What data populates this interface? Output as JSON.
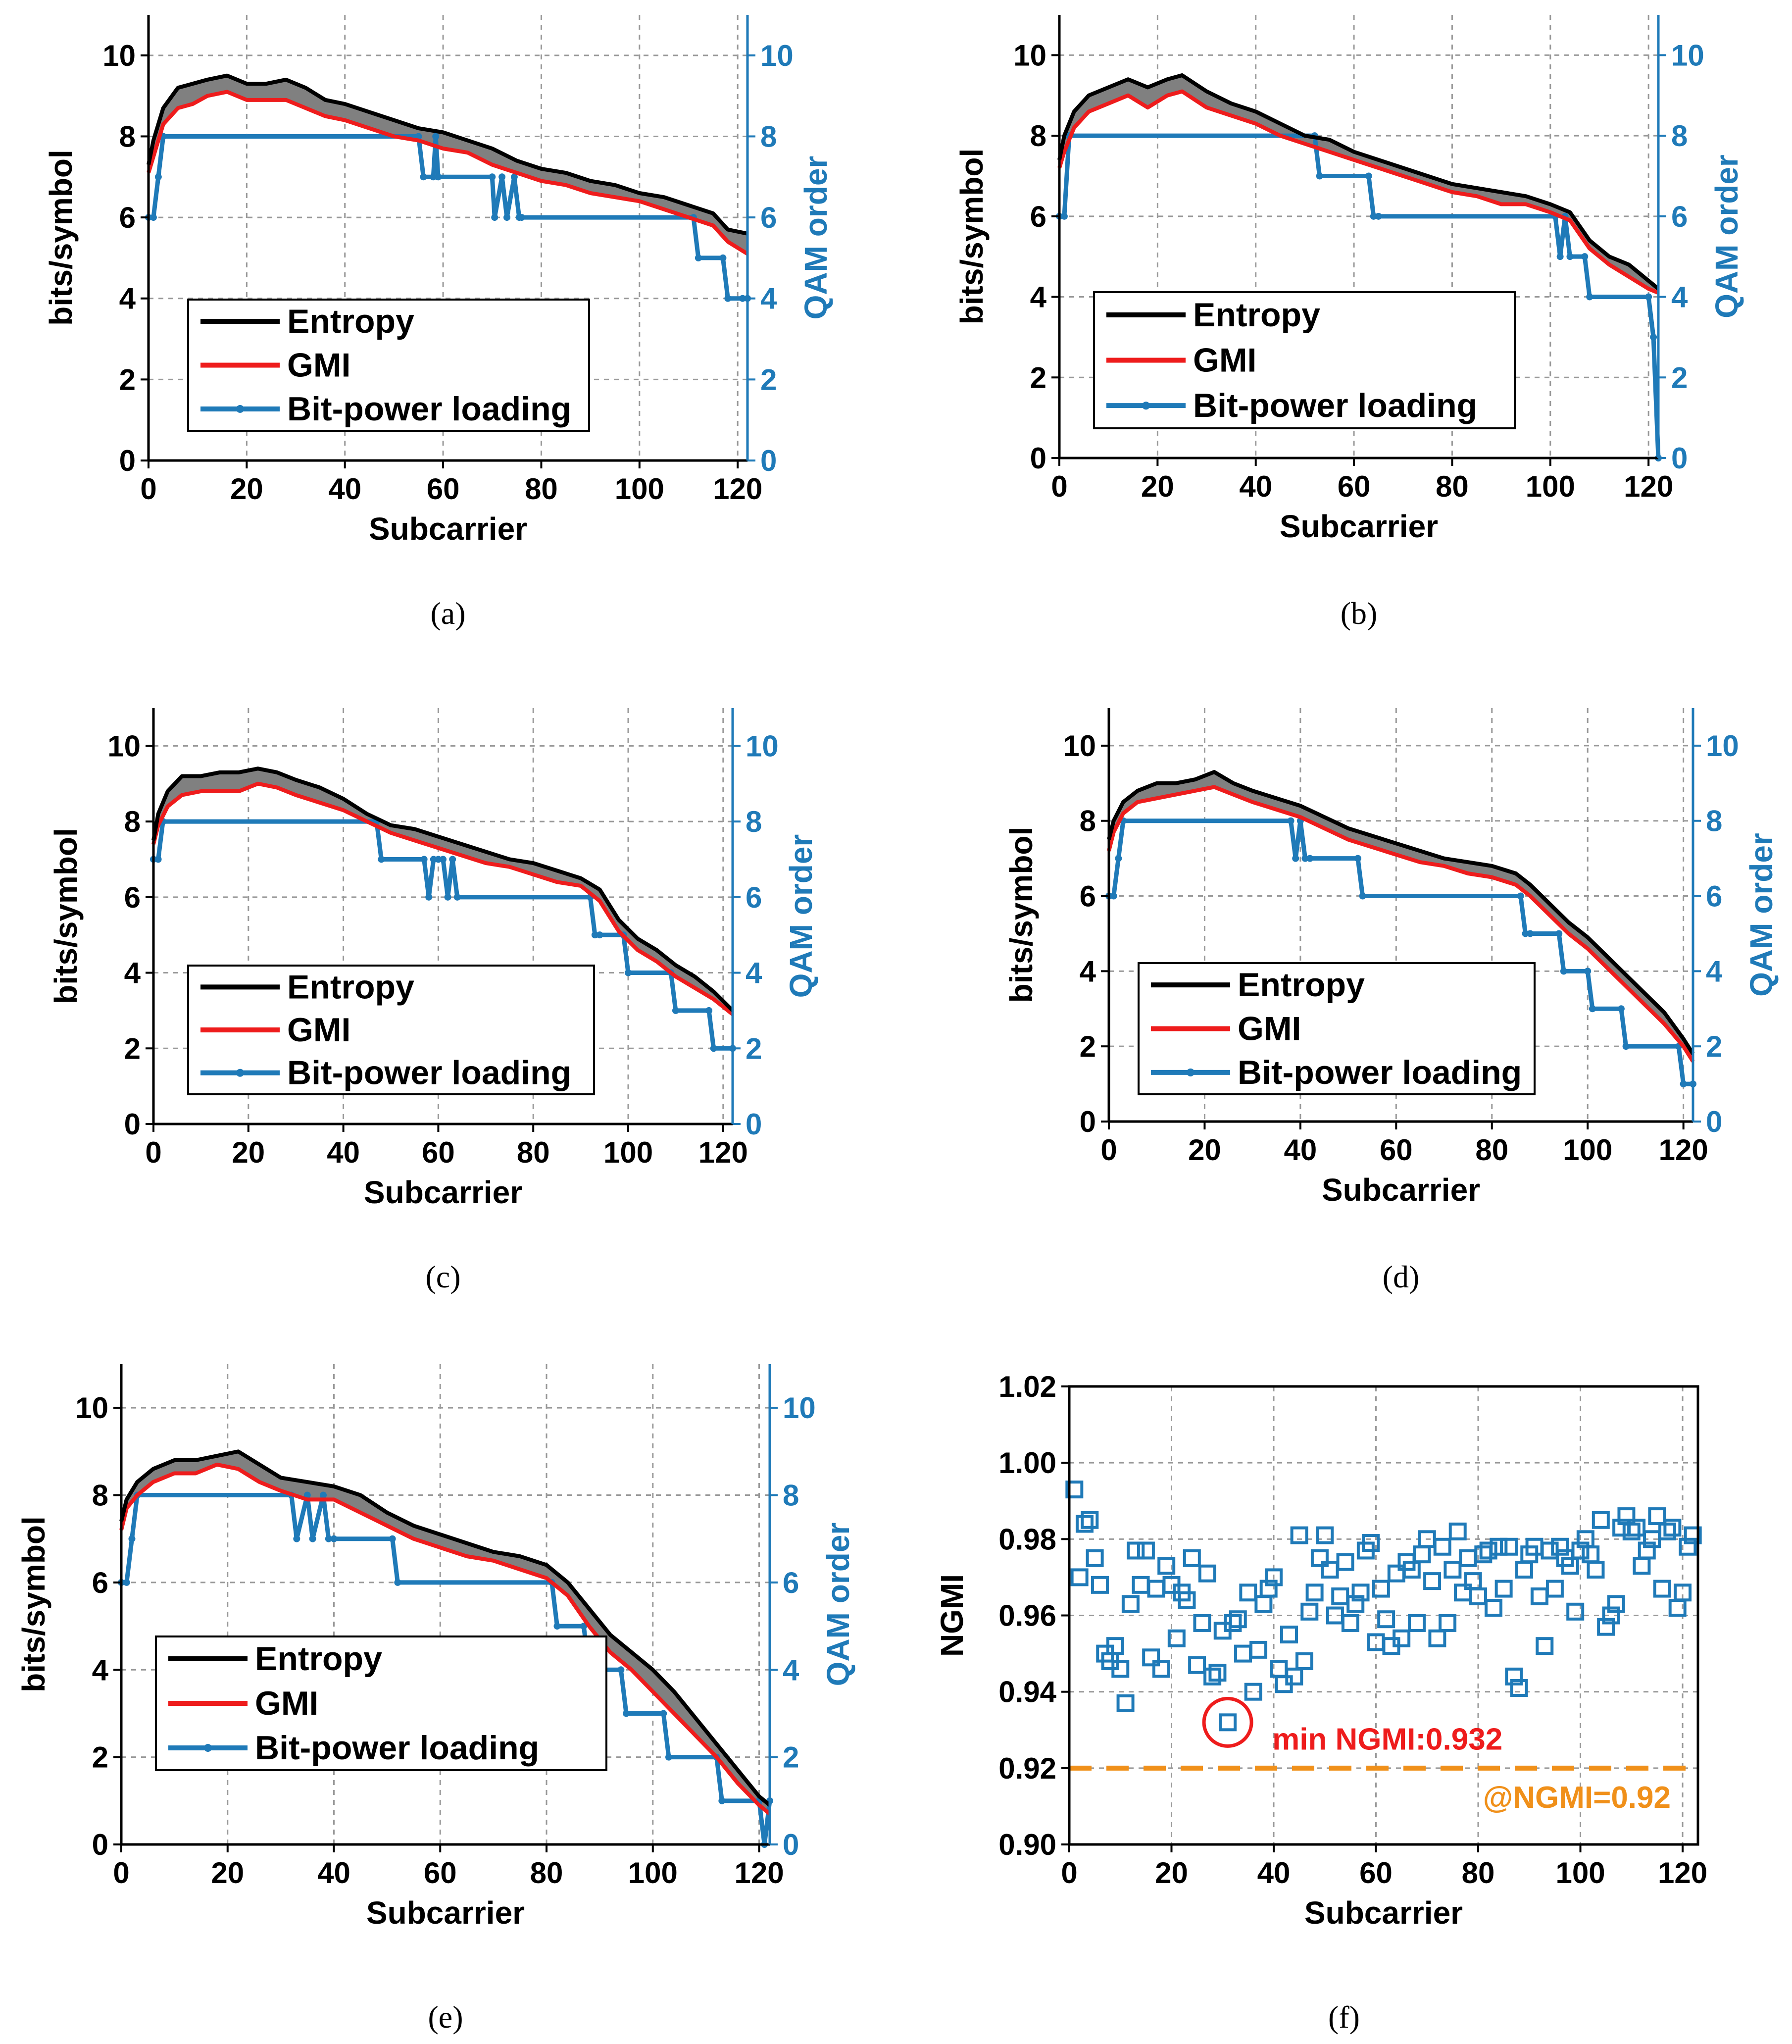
{
  "figure": {
    "panel_count": 6
  },
  "colors": {
    "entropy": "#000000",
    "gmi": "#ee1c1c",
    "gap_fill": "#808080",
    "qam": "#1f7ab8",
    "threshold": "#f0901a",
    "annotation": "#ee1c1c",
    "grid": "#999999"
  },
  "chart_data": [
    {
      "id": "a",
      "type": "line",
      "caption": "(a)",
      "xlabel": "Subcarrier",
      "ylabel": "bits/symbol",
      "y2label": "QAM order",
      "xlim": [
        0,
        122
      ],
      "ylim": [
        0,
        11
      ],
      "y2lim": [
        0,
        11
      ],
      "xticks": [
        "0",
        "20",
        "40",
        "60",
        "80",
        "100",
        "120"
      ],
      "yticks": [
        "0",
        "2",
        "4",
        "6",
        "8",
        "10"
      ],
      "y2ticks": [
        "0",
        "2",
        "4",
        "6",
        "8",
        "10"
      ],
      "legend": {
        "entropy": "Entropy",
        "gmi": "GMI",
        "qam": "Bit-power loading",
        "position": "lower-left"
      },
      "entropy_x": [
        0,
        1,
        3,
        6,
        9,
        12,
        16,
        20,
        24,
        28,
        32,
        36,
        40,
        45,
        50,
        55,
        60,
        65,
        70,
        75,
        80,
        85,
        90,
        95,
        100,
        105,
        110,
        115,
        118,
        122
      ],
      "entropy_y": [
        7.3,
        7.9,
        8.7,
        9.2,
        9.3,
        9.4,
        9.5,
        9.3,
        9.3,
        9.4,
        9.2,
        8.9,
        8.8,
        8.6,
        8.4,
        8.2,
        8.1,
        7.9,
        7.7,
        7.4,
        7.2,
        7.1,
        6.9,
        6.8,
        6.6,
        6.5,
        6.3,
        6.1,
        5.7,
        5.6
      ],
      "gmi_x": [
        0,
        1,
        3,
        6,
        9,
        12,
        16,
        20,
        24,
        28,
        32,
        36,
        40,
        45,
        50,
        55,
        60,
        65,
        70,
        75,
        80,
        85,
        90,
        95,
        100,
        105,
        110,
        115,
        118,
        122
      ],
      "gmi_y": [
        7.1,
        7.5,
        8.3,
        8.7,
        8.8,
        9.0,
        9.1,
        8.9,
        8.9,
        8.9,
        8.7,
        8.5,
        8.4,
        8.2,
        8.0,
        7.9,
        7.7,
        7.6,
        7.3,
        7.1,
        6.9,
        6.8,
        6.6,
        6.5,
        6.4,
        6.2,
        6.0,
        5.8,
        5.4,
        5.1
      ],
      "qam_x": [
        0,
        1,
        2,
        3,
        55,
        56,
        58,
        58.5,
        59,
        70,
        70.5,
        72,
        73,
        74.5,
        75.5,
        76,
        111,
        112,
        117,
        118,
        121,
        122
      ],
      "qam_y": [
        6,
        6,
        7,
        8,
        8,
        7,
        7,
        8,
        7,
        7,
        6,
        7,
        6,
        7,
        6,
        6,
        6,
        5,
        5,
        4,
        4,
        4
      ]
    },
    {
      "id": "b",
      "type": "line",
      "caption": "(b)",
      "xlabel": "Subcarrier",
      "ylabel": "bits/symbol",
      "y2label": "QAM order",
      "xlim": [
        0,
        122
      ],
      "ylim": [
        0,
        11
      ],
      "y2lim": [
        0,
        11
      ],
      "xticks": [
        "0",
        "20",
        "40",
        "60",
        "80",
        "100",
        "120"
      ],
      "yticks": [
        "0",
        "2",
        "4",
        "6",
        "8",
        "10"
      ],
      "y2ticks": [
        "0",
        "2",
        "4",
        "6",
        "8",
        "10"
      ],
      "legend": {
        "entropy": "Entropy",
        "gmi": "GMI",
        "qam": "Bit-power loading",
        "position": "lower-left"
      },
      "entropy_x": [
        0,
        1,
        3,
        6,
        10,
        14,
        18,
        22,
        25,
        30,
        35,
        40,
        45,
        50,
        55,
        60,
        65,
        70,
        75,
        80,
        85,
        90,
        95,
        100,
        104,
        108,
        112,
        116,
        120,
        122
      ],
      "entropy_y": [
        7.4,
        8.0,
        8.6,
        9.0,
        9.2,
        9.4,
        9.2,
        9.4,
        9.5,
        9.1,
        8.8,
        8.6,
        8.3,
        8.0,
        7.9,
        7.6,
        7.4,
        7.2,
        7.0,
        6.8,
        6.7,
        6.6,
        6.5,
        6.3,
        6.1,
        5.4,
        5.0,
        4.8,
        4.4,
        4.2
      ],
      "gmi_x": [
        0,
        1,
        3,
        6,
        10,
        14,
        18,
        22,
        25,
        30,
        35,
        40,
        45,
        50,
        55,
        60,
        65,
        70,
        75,
        80,
        85,
        90,
        95,
        100,
        104,
        108,
        112,
        116,
        120,
        122
      ],
      "gmi_y": [
        7.2,
        7.6,
        8.2,
        8.6,
        8.8,
        9.0,
        8.7,
        9.0,
        9.1,
        8.7,
        8.5,
        8.3,
        8.0,
        7.8,
        7.6,
        7.4,
        7.2,
        7.0,
        6.8,
        6.6,
        6.5,
        6.3,
        6.3,
        6.1,
        5.9,
        5.2,
        4.8,
        4.5,
        4.2,
        4.1
      ],
      "qam_x": [
        0,
        1,
        2,
        52,
        53,
        63,
        64,
        65,
        101,
        102,
        103,
        104,
        107,
        108,
        120,
        121,
        122
      ],
      "qam_y": [
        6,
        6,
        8,
        8,
        7,
        7,
        6,
        6,
        6,
        5,
        6,
        5,
        5,
        4,
        4,
        3,
        0
      ]
    },
    {
      "id": "c",
      "type": "line",
      "caption": "(c)",
      "xlabel": "Subcarrier",
      "ylabel": "bits/symbol",
      "y2label": "QAM order",
      "xlim": [
        0,
        122
      ],
      "ylim": [
        0,
        11
      ],
      "y2lim": [
        0,
        11
      ],
      "xticks": [
        "0",
        "20",
        "40",
        "60",
        "80",
        "100",
        "120"
      ],
      "yticks": [
        "0",
        "2",
        "4",
        "6",
        "8",
        "10"
      ],
      "y2ticks": [
        "0",
        "2",
        "4",
        "6",
        "8",
        "10"
      ],
      "legend": {
        "entropy": "Entropy",
        "gmi": "GMI",
        "qam": "Bit-power loading",
        "position": "lower-left"
      },
      "entropy_x": [
        0,
        1,
        3,
        6,
        10,
        14,
        18,
        22,
        26,
        30,
        35,
        40,
        45,
        50,
        55,
        60,
        65,
        70,
        75,
        80,
        85,
        90,
        94,
        98,
        102,
        106,
        110,
        114,
        118,
        122
      ],
      "entropy_y": [
        7.5,
        8.2,
        8.8,
        9.2,
        9.2,
        9.3,
        9.3,
        9.4,
        9.3,
        9.1,
        8.9,
        8.6,
        8.2,
        7.9,
        7.8,
        7.6,
        7.4,
        7.2,
        7.0,
        6.9,
        6.7,
        6.5,
        6.2,
        5.4,
        4.9,
        4.6,
        4.2,
        3.9,
        3.5,
        3.0
      ],
      "gmi_x": [
        0,
        1,
        3,
        6,
        10,
        14,
        18,
        22,
        26,
        30,
        35,
        40,
        45,
        50,
        55,
        60,
        65,
        70,
        75,
        80,
        85,
        90,
        94,
        98,
        102,
        106,
        110,
        114,
        118,
        122
      ],
      "gmi_y": [
        7.4,
        7.9,
        8.4,
        8.7,
        8.8,
        8.8,
        8.8,
        9.0,
        8.9,
        8.7,
        8.5,
        8.3,
        8.0,
        7.7,
        7.5,
        7.3,
        7.1,
        6.9,
        6.8,
        6.6,
        6.4,
        6.3,
        5.9,
        5.1,
        4.6,
        4.3,
        3.9,
        3.6,
        3.3,
        2.9
      ],
      "qam_x": [
        0,
        1,
        2,
        47,
        48,
        57,
        58,
        59,
        60,
        61,
        62,
        63,
        64,
        92,
        93,
        94,
        99,
        100,
        109,
        110,
        117,
        118,
        122
      ],
      "qam_y": [
        7,
        7,
        8,
        8,
        7,
        7,
        6,
        7,
        7,
        7,
        6,
        7,
        6,
        6,
        5,
        5,
        5,
        4,
        4,
        3,
        3,
        2,
        2
      ]
    },
    {
      "id": "d",
      "type": "line",
      "caption": "(d)",
      "xlabel": "Subcarrier",
      "ylabel": "bits/symbol",
      "y2label": "QAM order",
      "xlim": [
        0,
        122
      ],
      "ylim": [
        0,
        11
      ],
      "y2lim": [
        0,
        11
      ],
      "xticks": [
        "0",
        "20",
        "40",
        "60",
        "80",
        "100",
        "120"
      ],
      "yticks": [
        "0",
        "2",
        "4",
        "6",
        "8",
        "10"
      ],
      "y2ticks": [
        "0",
        "2",
        "4",
        "6",
        "8",
        "10"
      ],
      "legend": {
        "entropy": "Entropy",
        "gmi": "GMI",
        "qam": "Bit-power loading",
        "position": "lower-left"
      },
      "entropy_x": [
        0,
        1,
        3,
        6,
        10,
        14,
        18,
        22,
        26,
        30,
        35,
        40,
        45,
        50,
        55,
        60,
        65,
        70,
        75,
        80,
        85,
        88,
        92,
        96,
        100,
        104,
        108,
        112,
        116,
        120,
        122
      ],
      "entropy_y": [
        7.5,
        8.0,
        8.5,
        8.8,
        9.0,
        9.0,
        9.1,
        9.3,
        9.0,
        8.8,
        8.6,
        8.4,
        8.1,
        7.8,
        7.6,
        7.4,
        7.2,
        7.0,
        6.9,
        6.8,
        6.6,
        6.3,
        5.8,
        5.3,
        4.9,
        4.4,
        3.9,
        3.4,
        2.9,
        2.2,
        1.8
      ],
      "gmi_x": [
        0,
        1,
        3,
        6,
        10,
        14,
        18,
        22,
        26,
        30,
        35,
        40,
        45,
        50,
        55,
        60,
        65,
        70,
        75,
        80,
        85,
        88,
        92,
        96,
        100,
        104,
        108,
        112,
        116,
        120,
        122
      ],
      "gmi_y": [
        7.2,
        7.7,
        8.2,
        8.5,
        8.6,
        8.7,
        8.8,
        8.9,
        8.7,
        8.5,
        8.3,
        8.1,
        7.8,
        7.5,
        7.3,
        7.1,
        6.9,
        6.8,
        6.6,
        6.5,
        6.3,
        6.0,
        5.5,
        5.0,
        4.6,
        4.1,
        3.6,
        3.1,
        2.6,
        2.0,
        1.6
      ],
      "qam_x": [
        0,
        1,
        2,
        3,
        38,
        39,
        40,
        41,
        42,
        52,
        53,
        86,
        87,
        88,
        94,
        95,
        100,
        101,
        107,
        108,
        119,
        120,
        122
      ],
      "qam_y": [
        6,
        6,
        7,
        8,
        8,
        7,
        8,
        7,
        7,
        7,
        6,
        6,
        5,
        5,
        5,
        4,
        4,
        3,
        3,
        2,
        2,
        1,
        1
      ]
    },
    {
      "id": "e",
      "type": "line",
      "caption": "(e)",
      "xlabel": "Subcarrier",
      "ylabel": "bits/symbol",
      "y2label": "QAM order",
      "xlim": [
        0,
        122
      ],
      "ylim": [
        0,
        11
      ],
      "y2lim": [
        0,
        11
      ],
      "xticks": [
        "0",
        "20",
        "40",
        "60",
        "80",
        "100",
        "120"
      ],
      "yticks": [
        "0",
        "2",
        "4",
        "6",
        "8",
        "10"
      ],
      "y2ticks": [
        "0",
        "2",
        "4",
        "6",
        "8",
        "10"
      ],
      "legend": {
        "entropy": "Entropy",
        "gmi": "GMI",
        "qam": "Bit-power loading",
        "position": "lower-left"
      },
      "entropy_x": [
        0,
        1,
        3,
        6,
        10,
        14,
        18,
        22,
        26,
        30,
        35,
        40,
        45,
        50,
        55,
        60,
        65,
        70,
        75,
        80,
        84,
        88,
        92,
        96,
        100,
        104,
        108,
        112,
        116,
        120,
        122
      ],
      "entropy_y": [
        7.4,
        7.9,
        8.3,
        8.6,
        8.8,
        8.8,
        8.9,
        9.0,
        8.7,
        8.4,
        8.3,
        8.2,
        8.0,
        7.6,
        7.3,
        7.1,
        6.9,
        6.7,
        6.6,
        6.4,
        6.0,
        5.4,
        4.8,
        4.4,
        4.0,
        3.5,
        2.9,
        2.3,
        1.7,
        1.1,
        0.9
      ],
      "gmi_x": [
        0,
        1,
        3,
        6,
        10,
        14,
        18,
        22,
        26,
        30,
        35,
        40,
        45,
        50,
        55,
        60,
        65,
        70,
        75,
        80,
        84,
        88,
        92,
        96,
        100,
        104,
        108,
        112,
        116,
        120,
        122
      ],
      "gmi_y": [
        7.2,
        7.7,
        8.0,
        8.3,
        8.5,
        8.5,
        8.7,
        8.6,
        8.3,
        8.1,
        7.9,
        7.9,
        7.6,
        7.3,
        7.0,
        6.8,
        6.6,
        6.5,
        6.3,
        6.1,
        5.7,
        5.0,
        4.4,
        4.0,
        3.5,
        3.0,
        2.5,
        2.0,
        1.4,
        0.9,
        0.7
      ],
      "qam_x": [
        0,
        1,
        2,
        3,
        32,
        33,
        35,
        36,
        38,
        39,
        40,
        51,
        52,
        81,
        82,
        87,
        88,
        94,
        95,
        102,
        103,
        112,
        113,
        120,
        121,
        122
      ],
      "qam_y": [
        6,
        6,
        7,
        8,
        8,
        7,
        8,
        7,
        8,
        7,
        7,
        7,
        6,
        6,
        5,
        5,
        4,
        4,
        3,
        3,
        2,
        2,
        1,
        1,
        0,
        1
      ]
    },
    {
      "id": "f",
      "type": "scatter",
      "caption": "(f)",
      "xlabel": "Subcarrier",
      "ylabel": "NGMI",
      "xlim": [
        0,
        123
      ],
      "ylim": [
        0.9,
        1.02
      ],
      "xticks": [
        "0",
        "20",
        "40",
        "60",
        "80",
        "100",
        "120"
      ],
      "yticks": [
        "0.90",
        "0.92",
        "0.94",
        "0.96",
        "0.98",
        "1.00",
        "1.02"
      ],
      "threshold": 0.92,
      "threshold_label": "@NGMI=0.92",
      "min_label": "min NGMI:0.932",
      "min_point": [
        31,
        0.932
      ],
      "x": [
        1,
        2,
        3,
        4,
        5,
        6,
        7,
        8,
        9,
        10,
        11,
        12,
        13,
        14,
        15,
        16,
        17,
        18,
        19,
        20,
        21,
        22,
        23,
        24,
        25,
        26,
        27,
        28,
        29,
        30,
        31,
        32,
        33,
        34,
        35,
        36,
        37,
        38,
        39,
        40,
        41,
        42,
        43,
        44,
        45,
        46,
        47,
        48,
        49,
        50,
        51,
        52,
        53,
        54,
        55,
        56,
        57,
        58,
        59,
        60,
        61,
        62,
        63,
        64,
        65,
        66,
        67,
        68,
        69,
        70,
        71,
        72,
        73,
        74,
        75,
        76,
        77,
        78,
        79,
        80,
        81,
        82,
        83,
        84,
        85,
        86,
        87,
        88,
        89,
        90,
        91,
        92,
        93,
        94,
        95,
        96,
        97,
        98,
        99,
        100,
        101,
        102,
        103,
        104,
        105,
        106,
        107,
        108,
        109,
        110,
        111,
        112,
        113,
        114,
        115,
        116,
        117,
        118,
        119,
        120,
        121,
        122
      ],
      "y": [
        0.993,
        0.97,
        0.984,
        0.985,
        0.975,
        0.968,
        0.95,
        0.948,
        0.952,
        0.946,
        0.937,
        0.963,
        0.977,
        0.968,
        0.977,
        0.949,
        0.967,
        0.946,
        0.973,
        0.968,
        0.954,
        0.966,
        0.964,
        0.975,
        0.947,
        0.958,
        0.971,
        0.944,
        0.945,
        0.956,
        0.932,
        0.958,
        0.959,
        0.95,
        0.966,
        0.94,
        0.951,
        0.963,
        0.967,
        0.97,
        0.946,
        0.942,
        0.955,
        0.944,
        0.981,
        0.948,
        0.961,
        0.966,
        0.975,
        0.981,
        0.972,
        0.96,
        0.965,
        0.974,
        0.958,
        0.963,
        0.966,
        0.977,
        0.979,
        0.953,
        0.967,
        0.959,
        0.952,
        0.971,
        0.954,
        0.974,
        0.972,
        0.958,
        0.976,
        0.98,
        0.969,
        0.954,
        0.978,
        0.958,
        0.972,
        0.982,
        0.966,
        0.975,
        0.969,
        0.965,
        0.976,
        0.977,
        0.962,
        0.978,
        0.967,
        0.978,
        0.944,
        0.941,
        0.972,
        0.976,
        0.978,
        0.965,
        0.952,
        0.977,
        0.967,
        0.978,
        0.975,
        0.973,
        0.961,
        0.977,
        0.98,
        0.976,
        0.972,
        0.985,
        0.957,
        0.96,
        0.963,
        0.983,
        0.986,
        0.982,
        0.983,
        0.973,
        0.977,
        0.98,
        0.986,
        0.967,
        0.982,
        0.983,
        0.962,
        0.966,
        0.978,
        0.981
      ]
    }
  ]
}
